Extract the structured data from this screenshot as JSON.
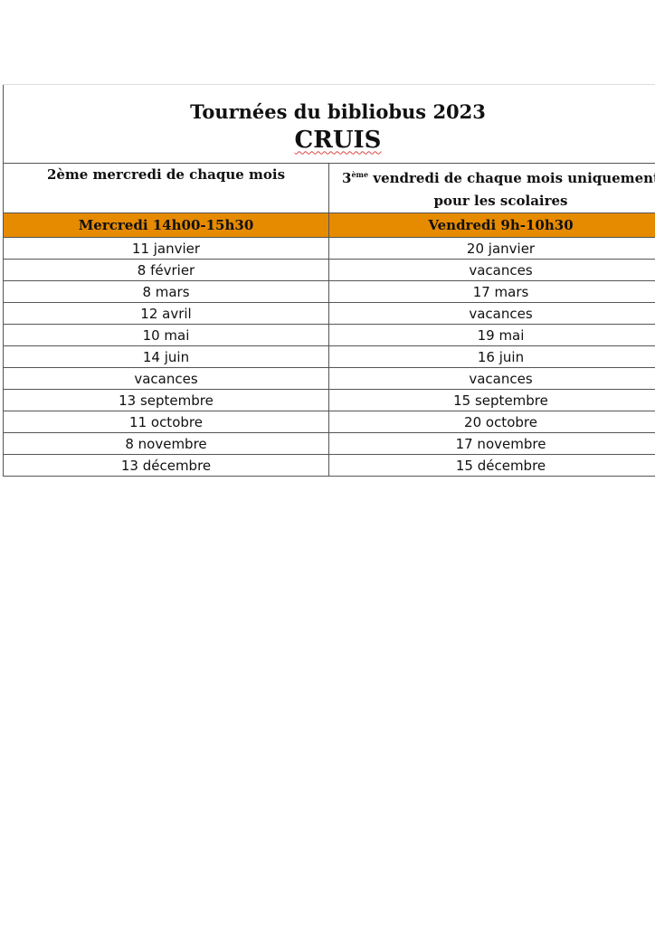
{
  "title": "Tournées du bibliobus 2023",
  "location": "CRUIS",
  "columns": [
    {
      "subtitle": "2ème mercredi de chaque mois",
      "header": "Mercredi 14h00-15h30"
    },
    {
      "subtitle_ordinal": "3",
      "subtitle_sup": "ème",
      "subtitle": "vendredi de chaque mois uniquement pour les scolaires",
      "header": "Vendredi 9h-10h30"
    }
  ],
  "header_color": "#e68a00",
  "rows": [
    [
      "11 janvier",
      "20 janvier"
    ],
    [
      "8 février",
      "vacances"
    ],
    [
      "8 mars",
      "17 mars"
    ],
    [
      "12 avril",
      "vacances"
    ],
    [
      "10 mai",
      "19 mai"
    ],
    [
      "14 juin",
      "16 juin"
    ],
    [
      "vacances",
      "vacances"
    ],
    [
      "13 septembre",
      "15 septembre"
    ],
    [
      "11 octobre",
      "20 octobre"
    ],
    [
      "8 novembre",
      "17 novembre"
    ],
    [
      "13 décembre",
      "15 décembre"
    ]
  ]
}
